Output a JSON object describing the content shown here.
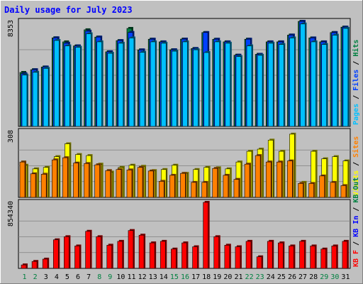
{
  "title": "Daily usage for July 2023",
  "colors": {
    "background": "#C0C0C0",
    "title": "#0000FF",
    "hits": "#008040",
    "files": "#0040FF",
    "pages": "#00C0FF",
    "visits": "#FFFF00",
    "sites": "#FF8000",
    "kb_in": "#0000FF",
    "kb_out": "#008040",
    "kb_f": "#FF0000",
    "weekend_label": "#008040",
    "weekday_label": "#000000"
  },
  "chart_data": [
    {
      "type": "bar",
      "panel": "top",
      "y_max_label": "8353",
      "ylim": [
        0,
        8353
      ],
      "legend": [
        {
          "text": "Pages",
          "color": "#00C0FF"
        },
        {
          "text": " / ",
          "color": "#000000"
        },
        {
          "text": "Files",
          "color": "#0040FF"
        },
        {
          "text": " / ",
          "color": "#000000"
        },
        {
          "text": "Hits",
          "color": "#008040"
        }
      ],
      "categories": [
        "1",
        "2",
        "3",
        "4",
        "5",
        "6",
        "7",
        "8",
        "9",
        "10",
        "11",
        "12",
        "13",
        "14",
        "15",
        "16",
        "17",
        "18",
        "19",
        "20",
        "21",
        "22",
        "23",
        "24",
        "25",
        "26",
        "27",
        "28",
        "29",
        "30",
        "31"
      ],
      "weekend_days": [
        "1",
        "2",
        "8",
        "9",
        "15",
        "16",
        "22",
        "23",
        "29",
        "30"
      ],
      "series": [
        {
          "name": "Hits",
          "values": [
            4290,
            4505,
            4720,
            7040,
            6720,
            6400,
            7680,
            7100,
            5930,
            6820,
            7790,
            6080,
            6930,
            6720,
            6090,
            6940,
            6190,
            7460,
            6920,
            6720,
            5660,
            6930,
            5730,
            6720,
            6720,
            7260,
            8350,
            7030,
            6720,
            7460,
            7890
          ]
        },
        {
          "name": "Files",
          "values": [
            4190,
            4505,
            4720,
            7040,
            6610,
            6400,
            7570,
            7100,
            5930,
            6820,
            7470,
            6080,
            6930,
            6720,
            6090,
            6940,
            6190,
            7460,
            6930,
            6720,
            5660,
            6930,
            5730,
            6720,
            6720,
            7260,
            8350,
            7030,
            6720,
            7460,
            7890
          ]
        },
        {
          "name": "Pages",
          "values": [
            4080,
            4300,
            4610,
            6830,
            6400,
            6290,
            7360,
            6720,
            5810,
            6610,
            7030,
            5890,
            6720,
            6610,
            5980,
            6720,
            6090,
            5870,
            6720,
            6610,
            5550,
            6400,
            5650,
            6610,
            6510,
            7030,
            8140,
            6720,
            6510,
            7250,
            7790
          ]
        }
      ]
    },
    {
      "type": "bar",
      "panel": "middle",
      "y_max_label": "308",
      "ylim": [
        0,
        308
      ],
      "legend": [
        {
          "text": "Visits",
          "color": "#FFFF00"
        },
        {
          "text": " / ",
          "color": "#000000"
        },
        {
          "text": "Sites",
          "color": "#FF8000"
        }
      ],
      "categories": [
        "1",
        "2",
        "3",
        "4",
        "5",
        "6",
        "7",
        "8",
        "9",
        "10",
        "11",
        "12",
        "13",
        "14",
        "15",
        "16",
        "17",
        "18",
        "19",
        "20",
        "21",
        "22",
        "23",
        "24",
        "25",
        "26",
        "27",
        "28",
        "29",
        "30",
        "31"
      ],
      "series": [
        {
          "name": "Visits",
          "values": [
            150,
            133,
            140,
            190,
            250,
            200,
            195,
            155,
            118,
            140,
            150,
            145,
            125,
            130,
            150,
            112,
            130,
            140,
            138,
            133,
            165,
            215,
            225,
            267,
            215,
            295,
            70,
            215,
            180,
            190,
            170
          ]
        },
        {
          "name": "Sites",
          "values": [
            165,
            110,
            108,
            175,
            185,
            160,
            158,
            152,
            125,
            130,
            128,
            140,
            123,
            75,
            103,
            112,
            70,
            70,
            135,
            103,
            84,
            155,
            195,
            165,
            165,
            170,
            65,
            65,
            100,
            70,
            55
          ]
        }
      ]
    },
    {
      "type": "bar",
      "panel": "bottom",
      "y_max_label": "854340",
      "ylim": [
        0,
        854340
      ],
      "legend": [
        {
          "text": "KB F",
          "color": "#FF0000"
        },
        {
          "text": " / ",
          "color": "#000000"
        },
        {
          "text": "KB In",
          "color": "#0000FF"
        },
        {
          "text": " / ",
          "color": "#000000"
        },
        {
          "text": "KB Out",
          "color": "#008040"
        }
      ],
      "categories": [
        "1",
        "2",
        "3",
        "4",
        "5",
        "6",
        "7",
        "8",
        "9",
        "10",
        "11",
        "12",
        "13",
        "14",
        "15",
        "16",
        "17",
        "18",
        "19",
        "20",
        "21",
        "22",
        "23",
        "24",
        "25",
        "26",
        "27",
        "28",
        "29",
        "30",
        "31"
      ],
      "series": [
        {
          "name": "KB F",
          "values": [
            45000,
            90000,
            120000,
            370000,
            410000,
            290000,
            480000,
            410000,
            300000,
            350000,
            490000,
            430000,
            330000,
            350000,
            250000,
            330000,
            280000,
            854340,
            410000,
            300000,
            280000,
            350000,
            150000,
            350000,
            330000,
            290000,
            350000,
            290000,
            250000,
            290000,
            350000
          ]
        }
      ]
    }
  ]
}
